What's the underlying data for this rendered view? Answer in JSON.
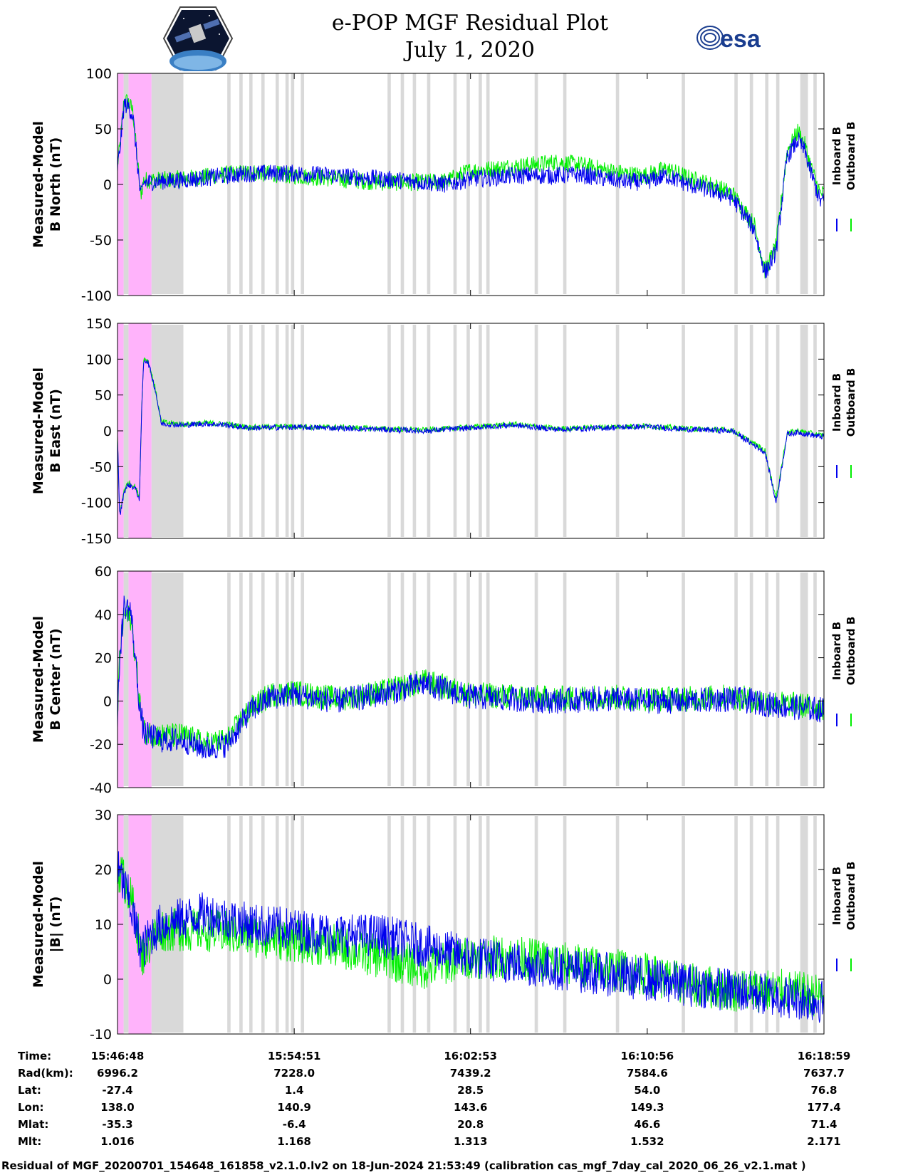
{
  "title": {
    "line1": "e-POP MGF Residual Plot",
    "line2": "July 1, 2020"
  },
  "logos": {
    "left": "cassiope-mission-logo",
    "right_text": "esa"
  },
  "colors": {
    "inboard": "#0000ee",
    "outboard": "#00ee00",
    "pink": "#ffb3fb",
    "gray": "#d9d9d9"
  },
  "legend": {
    "inboard": "Inboard B",
    "outboard": "Outboard B"
  },
  "chart_data": [
    {
      "type": "line",
      "ylabel_line1": "Measured-Model",
      "ylabel_line2": "B North (nT)",
      "ylim": [
        -100,
        100
      ],
      "yticks": [
        -100,
        -50,
        0,
        50,
        100
      ],
      "series": [
        {
          "name": "Inboard B",
          "x": [
            0,
            0.1,
            0.3,
            0.5,
            0.7,
            0.95,
            1.05,
            1.2,
            2,
            3,
            4,
            5,
            6,
            8,
            10,
            12,
            14,
            15,
            16,
            17,
            18,
            19,
            20,
            21,
            22,
            23,
            24,
            25,
            26,
            27,
            28,
            29,
            29.5,
            30,
            30.5,
            31,
            31.3,
            31.6,
            32
          ],
          "values": [
            15,
            30,
            72,
            70,
            62,
            10,
            -12,
            2,
            3,
            4,
            6,
            8,
            10,
            10,
            8,
            5,
            2,
            0,
            5,
            6,
            8,
            8,
            8,
            9,
            6,
            3,
            2,
            8,
            0,
            -5,
            -12,
            -40,
            -80,
            -60,
            25,
            40,
            30,
            10,
            -15
          ]
        },
        {
          "name": "Outboard B",
          "x": [
            0,
            0.1,
            0.3,
            0.5,
            0.7,
            0.95,
            1.05,
            1.2,
            2,
            3,
            4,
            5,
            6,
            8,
            10,
            12,
            14,
            15,
            16,
            17,
            18,
            19,
            20,
            21,
            22,
            23,
            24,
            25,
            26,
            27,
            28,
            29,
            29.5,
            30,
            30.5,
            31,
            31.3,
            31.6,
            32
          ],
          "values": [
            18,
            32,
            76,
            74,
            66,
            12,
            -10,
            4,
            4,
            5,
            7,
            9,
            11,
            8,
            5,
            2,
            2,
            3,
            12,
            14,
            16,
            18,
            20,
            18,
            14,
            10,
            8,
            14,
            6,
            0,
            -8,
            -36,
            -78,
            -55,
            30,
            48,
            36,
            15,
            -8
          ]
        }
      ]
    },
    {
      "type": "line",
      "ylabel_line1": "Measured-Model",
      "ylabel_line2": "B East (nT)",
      "ylim": [
        -150,
        150
      ],
      "yticks": [
        -150,
        -100,
        -50,
        0,
        50,
        100,
        150
      ],
      "series": [
        {
          "name": "Inboard B",
          "x": [
            0,
            0.1,
            0.3,
            0.5,
            0.8,
            1.0,
            1.1,
            1.2,
            1.4,
            1.7,
            2,
            3,
            4,
            5,
            6,
            8,
            10,
            12,
            14,
            16,
            18,
            20,
            22,
            24,
            26,
            28,
            29,
            29.5,
            30,
            30.5,
            31,
            32
          ],
          "values": [
            -10,
            -120,
            -85,
            -75,
            -80,
            -95,
            30,
            100,
            95,
            60,
            10,
            8,
            10,
            8,
            4,
            5,
            4,
            2,
            0,
            4,
            8,
            2,
            4,
            6,
            2,
            0,
            -20,
            -30,
            -100,
            -5,
            -2,
            -8
          ]
        },
        {
          "name": "Outboard B",
          "x": [
            0,
            0.1,
            0.3,
            0.5,
            0.8,
            1.0,
            1.1,
            1.2,
            1.4,
            1.7,
            2,
            3,
            4,
            5,
            6,
            8,
            10,
            12,
            14,
            16,
            18,
            20,
            22,
            24,
            26,
            28,
            29,
            29.5,
            30,
            30.5,
            31,
            32
          ],
          "values": [
            -8,
            -118,
            -82,
            -72,
            -78,
            -92,
            32,
            102,
            97,
            62,
            12,
            9,
            11,
            9,
            5,
            6,
            5,
            3,
            1,
            5,
            9,
            3,
            5,
            7,
            3,
            1,
            -18,
            -28,
            -95,
            -3,
            0,
            -6
          ]
        }
      ]
    },
    {
      "type": "line",
      "ylabel_line1": "Measured-Model",
      "ylabel_line2": "B Center (nT)",
      "ylim": [
        -40,
        60
      ],
      "yticks": [
        -40,
        -20,
        0,
        20,
        40,
        60
      ],
      "series": [
        {
          "name": "Inboard B",
          "x": [
            0,
            0.1,
            0.3,
            0.6,
            0.9,
            1.0,
            1.2,
            2,
            3,
            4,
            5,
            6,
            7,
            8,
            10,
            12,
            14,
            15,
            16,
            18,
            20,
            22,
            24,
            26,
            28,
            30,
            32
          ],
          "values": [
            -10,
            20,
            44,
            42,
            10,
            -2,
            -15,
            -18,
            -18,
            -22,
            -20,
            -5,
            2,
            3,
            0,
            3,
            8,
            5,
            2,
            1,
            0,
            1,
            0,
            0,
            1,
            -2,
            -4
          ]
        },
        {
          "name": "Outboard B",
          "x": [
            0,
            0.1,
            0.3,
            0.6,
            0.9,
            1.0,
            1.2,
            2,
            3,
            4,
            5,
            6,
            7,
            8,
            10,
            12,
            14,
            15,
            16,
            18,
            20,
            22,
            24,
            26,
            28,
            30,
            32
          ],
          "values": [
            -8,
            22,
            40,
            38,
            12,
            0,
            -14,
            -16,
            -16,
            -20,
            -18,
            -4,
            3,
            4,
            1,
            4,
            9,
            6,
            3,
            2,
            1,
            2,
            1,
            1,
            2,
            -1,
            -3
          ]
        }
      ]
    },
    {
      "type": "line",
      "ylabel_line1": "Measured-Model",
      "ylabel_line2": "|B| (nT)",
      "ylim": [
        -10,
        30
      ],
      "yticks": [
        -10,
        0,
        10,
        20,
        30
      ],
      "series": [
        {
          "name": "Inboard B",
          "x": [
            0,
            0.2,
            0.5,
            0.8,
            1.1,
            1.5,
            2,
            3,
            4,
            6,
            8,
            10,
            12,
            14,
            16,
            18,
            20,
            22,
            24,
            26,
            28,
            30,
            32
          ],
          "values": [
            20,
            18,
            15,
            10,
            5,
            8,
            10,
            11,
            12,
            10,
            9,
            8,
            8,
            6,
            4,
            3,
            2,
            1,
            0,
            -1,
            -2,
            -3,
            -4
          ]
        },
        {
          "name": "Outboard B",
          "x": [
            0,
            0.2,
            0.5,
            0.8,
            1.1,
            1.5,
            2,
            3,
            4,
            6,
            8,
            10,
            12,
            14,
            16,
            18,
            20,
            22,
            24,
            26,
            28,
            30,
            32
          ],
          "values": [
            20,
            19,
            16,
            12,
            4,
            7,
            9,
            9,
            9,
            8,
            7,
            6,
            4,
            2,
            4,
            4,
            3,
            2,
            1,
            -1,
            -2,
            -2,
            -3
          ]
        }
      ]
    }
  ],
  "x_axis": {
    "range_minutes": [
      0,
      32.18
    ],
    "tick_minutes": [
      0,
      8.05,
      16.08,
      24.13,
      32.18
    ],
    "rows": [
      {
        "label": "Time:",
        "values": [
          "15:46:48",
          "15:54:51",
          "16:02:53",
          "16:10:56",
          "16:18:59"
        ]
      },
      {
        "label": "Rad(km):",
        "values": [
          "6996.2",
          "7228.0",
          "7439.2",
          "7584.6",
          "7637.7"
        ]
      },
      {
        "label": "Lat:",
        "values": [
          "-27.4",
          "1.4",
          "28.5",
          "54.0",
          "76.8"
        ]
      },
      {
        "label": "Lon:",
        "values": [
          "138.0",
          "140.9",
          "143.6",
          "149.3",
          "177.4"
        ]
      },
      {
        "label": "Mlat:",
        "values": [
          "-35.3",
          "-6.4",
          "20.8",
          "46.6",
          "71.4"
        ]
      },
      {
        "label": "Mlt:",
        "values": [
          "1.016",
          "1.168",
          "1.313",
          "1.532",
          "2.171"
        ]
      }
    ]
  },
  "shading": {
    "pink_minutes": [
      [
        0,
        0.28
      ],
      [
        0.5,
        1.55
      ]
    ],
    "gray_minutes": [
      [
        0.28,
        0.5
      ],
      [
        1.55,
        3.0
      ],
      [
        5.0,
        5.15
      ],
      [
        5.55,
        5.7
      ],
      [
        6.0,
        6.15
      ],
      [
        6.55,
        6.7
      ],
      [
        7.2,
        7.35
      ],
      [
        7.65,
        7.8
      ],
      [
        7.9,
        8.05
      ],
      [
        8.35,
        8.5
      ],
      [
        12.3,
        12.45
      ],
      [
        12.9,
        13.05
      ],
      [
        13.45,
        13.6
      ],
      [
        14.1,
        14.25
      ],
      [
        15.3,
        15.45
      ],
      [
        15.9,
        16.05
      ],
      [
        16.45,
        16.6
      ],
      [
        16.8,
        16.95
      ],
      [
        19.0,
        19.15
      ],
      [
        20.3,
        20.45
      ],
      [
        22.7,
        22.85
      ],
      [
        25.7,
        25.85
      ],
      [
        28.1,
        28.25
      ],
      [
        28.8,
        28.95
      ],
      [
        29.5,
        29.65
      ],
      [
        30.0,
        30.15
      ],
      [
        31.1,
        31.45
      ],
      [
        31.7,
        31.85
      ]
    ]
  },
  "footer": "Residual of MGF_20200701_154648_161858_v2.1.0.lv2 on 18-Jun-2024 21:53:49 (calibration cas_mgf_7day_cal_2020_06_26_v2.1.mat )"
}
